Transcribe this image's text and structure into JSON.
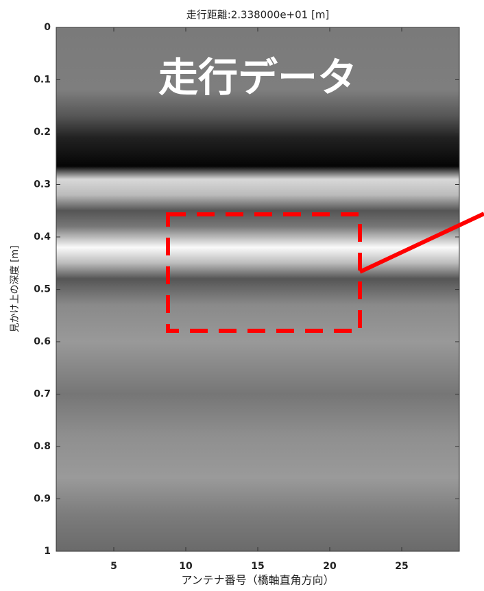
{
  "chart_data": {
    "type": "image",
    "title": "走行距離:2.338000e+01 [m]",
    "annotation": "走行データ",
    "xlabel": "アンテナ番号（橋軸直角方向）",
    "ylabel": "見かけ上の深度 [m]",
    "xlim": [
      1,
      29
    ],
    "xticks": [
      5,
      10,
      15,
      20,
      25
    ],
    "ylim": [
      0,
      1
    ],
    "yticks": [
      0,
      0.1,
      0.2,
      0.3,
      0.4,
      0.5,
      0.6,
      0.7,
      0.8,
      0.9,
      1
    ],
    "y_inverted": true
  }
}
